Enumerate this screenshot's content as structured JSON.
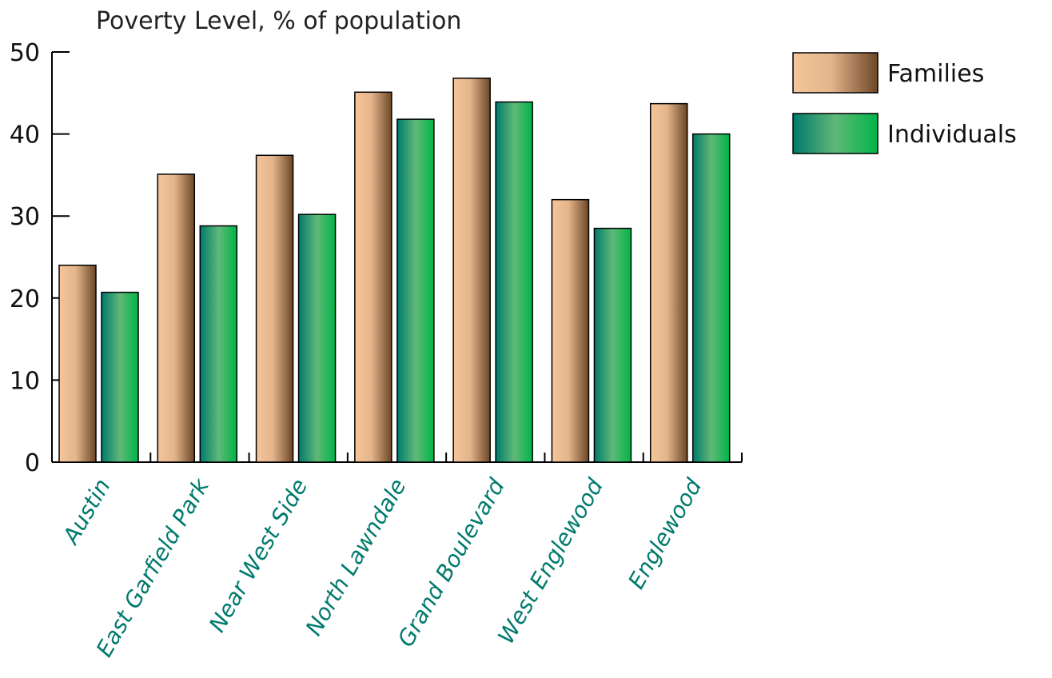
{
  "chart_data": {
    "type": "bar",
    "title": "Poverty Level, % of population",
    "xlabel": "",
    "ylabel": "",
    "ylim": [
      0,
      50
    ],
    "yticks": [
      0,
      10,
      20,
      30,
      40,
      50
    ],
    "categories": [
      "Austin",
      "East Garfield Park",
      "Near West Side",
      "North Lawndale",
      "Grand Boulevard",
      "West Englewood",
      "Englewood"
    ],
    "series": [
      {
        "name": "Families",
        "values": [
          24.0,
          35.1,
          37.4,
          45.1,
          46.8,
          32.0,
          43.7
        ]
      },
      {
        "name": "Individuals",
        "values": [
          20.7,
          28.8,
          30.2,
          41.8,
          43.9,
          28.5,
          40.0
        ]
      }
    ],
    "legend_position": "top-right",
    "grid": false
  },
  "colors": {
    "families": [
      "#f5c59a",
      "#e4b58c",
      "#6b4626"
    ],
    "individuals": [
      "#007a6c",
      "#60b878",
      "#00b548"
    ],
    "category_labels": "#007a6e"
  }
}
